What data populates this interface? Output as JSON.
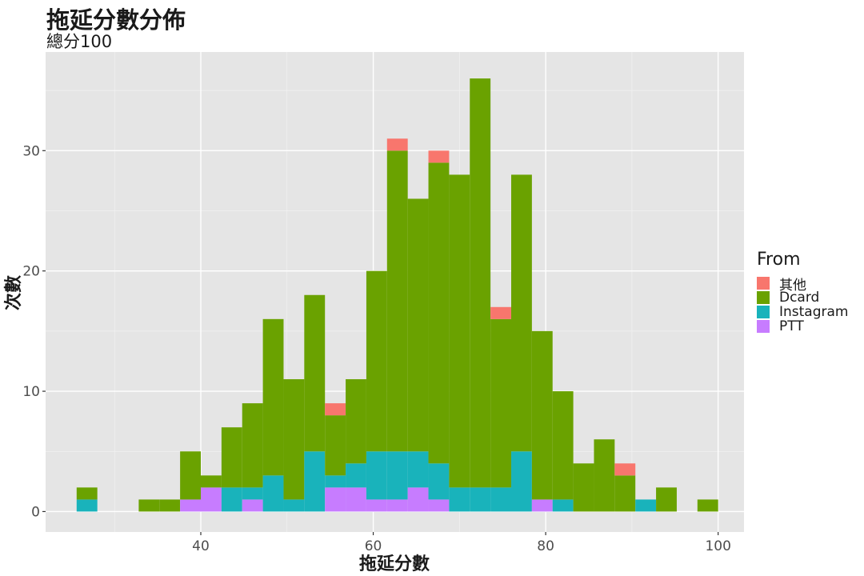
{
  "chart_data": {
    "type": "bar",
    "stacked": true,
    "title": "拖延分數分佈",
    "subtitle": "總分100",
    "xlabel": "拖延分數",
    "ylabel": "次數",
    "xlim": [
      22,
      103
    ],
    "ylim": [
      -1.7,
      38.2
    ],
    "xticks": [
      40,
      60,
      80,
      100
    ],
    "yticks": [
      0,
      10,
      20,
      30
    ],
    "grid": true,
    "legend_title": "From",
    "legend_position": "right",
    "bin_width": 2.4,
    "bin_centers": [
      26.8,
      29.2,
      31.6,
      34.0,
      36.4,
      38.8,
      41.2,
      43.6,
      46.0,
      48.4,
      50.8,
      53.2,
      55.6,
      58.0,
      60.4,
      62.8,
      65.2,
      67.6,
      70.0,
      72.4,
      74.8,
      77.2,
      79.6,
      82.0,
      84.4,
      86.8,
      89.2,
      91.6,
      94.0,
      96.4,
      98.8
    ],
    "series": [
      {
        "name": "其他",
        "color": "#F8766D",
        "values": [
          0,
          0,
          0,
          0,
          0,
          0,
          0,
          0,
          0,
          0,
          0,
          0,
          1,
          0,
          0,
          1,
          0,
          1,
          0,
          0,
          1,
          0,
          0,
          0,
          0,
          0,
          1,
          0,
          0,
          0,
          0
        ]
      },
      {
        "name": "Dcard",
        "color": "#6AA200",
        "values": [
          1,
          0,
          0,
          1,
          1,
          4,
          1,
          5,
          7,
          13,
          10,
          13,
          5,
          7,
          15,
          25,
          21,
          25,
          26,
          34,
          14,
          23,
          14,
          9,
          4,
          6,
          3,
          0,
          2,
          0,
          1
        ]
      },
      {
        "name": "Instagram",
        "color": "#19B3BB",
        "values": [
          1,
          0,
          0,
          0,
          0,
          0,
          0,
          2,
          1,
          3,
          1,
          5,
          1,
          2,
          4,
          4,
          3,
          3,
          2,
          2,
          2,
          5,
          0,
          1,
          0,
          0,
          0,
          1,
          0,
          0,
          0
        ]
      },
      {
        "name": "PTT",
        "color": "#C77CFF",
        "values": [
          0,
          0,
          0,
          0,
          0,
          1,
          2,
          0,
          1,
          0,
          0,
          0,
          2,
          2,
          1,
          1,
          2,
          1,
          0,
          0,
          0,
          0,
          1,
          0,
          0,
          0,
          0,
          0,
          0,
          0,
          0
        ]
      }
    ]
  }
}
